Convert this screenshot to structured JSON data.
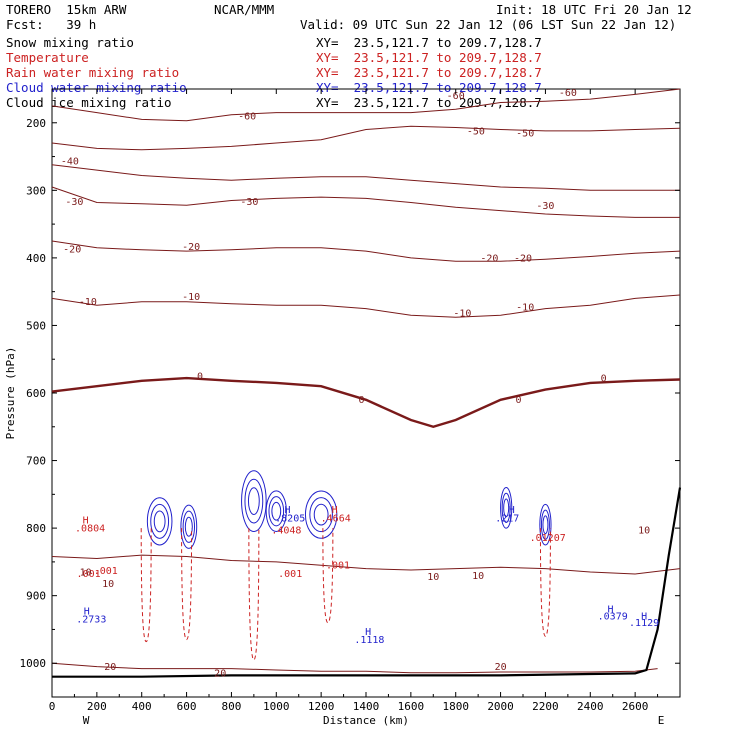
{
  "header": {
    "model": "TORERO  15km ARW",
    "center": "NCAR/MMM",
    "init": "Init: 18 UTC Fri 20 Jan 12",
    "fcst": "Fcst:   39 h",
    "valid": "Valid: 09 UTC Sun 22 Jan 12 (06 LST Sun 22 Jan 12)"
  },
  "fields": [
    {
      "name": "Snow mixing ratio",
      "xy": "XY=  23.5,121.7 to 209.7,128.7",
      "color": "#000000"
    },
    {
      "name": "Temperature",
      "xy": "XY=  23.5,121.7 to 209.7,128.7",
      "color": "#cc2222"
    },
    {
      "name": "Rain water mixing ratio",
      "xy": "XY=  23.5,121.7 to 209.7,128.7",
      "color": "#cc2222"
    },
    {
      "name": "Cloud water mixing ratio",
      "xy": "XY=  23.5,121.7 to 209.7,128.7",
      "color": "#2222cc"
    },
    {
      "name": "Cloud ice mixing ratio",
      "xy": "XY=  23.5,121.7 to 209.7,128.7",
      "color": "#000000"
    }
  ],
  "chart_data": {
    "type": "line",
    "title": "",
    "xlabel": "Distance (km)",
    "ylabel": "Pressure (hPa)",
    "xlim": [
      0,
      2800
    ],
    "ylim": [
      1050,
      150
    ],
    "x_ticks": [
      0,
      200,
      400,
      600,
      800,
      1000,
      1200,
      1400,
      1600,
      1800,
      2000,
      2200,
      2400,
      2600
    ],
    "y_ticks": [
      200,
      300,
      400,
      500,
      600,
      700,
      800,
      900,
      1000
    ],
    "x_end_labels": {
      "left": "W",
      "right": "E"
    },
    "colors": {
      "temperature": "#7a1a1a",
      "rain": "#cc2222",
      "cloud": "#2222cc",
      "terrain": "#000000"
    },
    "isotherms": [
      {
        "label": "-60",
        "points": [
          [
            0,
            175
          ],
          [
            200,
            185
          ],
          [
            400,
            195
          ],
          [
            600,
            197
          ],
          [
            800,
            188
          ],
          [
            1000,
            185
          ],
          [
            1200,
            185
          ],
          [
            1400,
            185
          ],
          [
            1600,
            185
          ],
          [
            1800,
            180
          ],
          [
            2000,
            170
          ],
          [
            2200,
            168
          ],
          [
            2400,
            165
          ],
          [
            2600,
            158
          ],
          [
            2800,
            150
          ]
        ]
      },
      {
        "label": "-50",
        "points": [
          [
            0,
            230
          ],
          [
            200,
            238
          ],
          [
            400,
            240
          ],
          [
            600,
            238
          ],
          [
            800,
            235
          ],
          [
            1000,
            230
          ],
          [
            1200,
            225
          ],
          [
            1400,
            210
          ],
          [
            1600,
            205
          ],
          [
            1800,
            207
          ],
          [
            2000,
            210
          ],
          [
            2200,
            212
          ],
          [
            2400,
            212
          ],
          [
            2600,
            210
          ],
          [
            2800,
            208
          ]
        ]
      },
      {
        "label": "-40",
        "points": [
          [
            0,
            262
          ],
          [
            200,
            270
          ],
          [
            400,
            278
          ],
          [
            600,
            282
          ],
          [
            800,
            285
          ],
          [
            1000,
            282
          ],
          [
            1200,
            280
          ],
          [
            1400,
            280
          ],
          [
            1600,
            285
          ],
          [
            1800,
            290
          ],
          [
            2000,
            295
          ],
          [
            2200,
            297
          ],
          [
            2400,
            300
          ],
          [
            2600,
            300
          ],
          [
            2800,
            300
          ]
        ]
      },
      {
        "label": "-30",
        "points": [
          [
            0,
            295
          ],
          [
            200,
            318
          ],
          [
            400,
            320
          ],
          [
            600,
            322
          ],
          [
            800,
            315
          ],
          [
            1000,
            312
          ],
          [
            1200,
            310
          ],
          [
            1400,
            312
          ],
          [
            1600,
            318
          ],
          [
            1800,
            325
          ],
          [
            2000,
            330
          ],
          [
            2200,
            335
          ],
          [
            2400,
            338
          ],
          [
            2600,
            340
          ],
          [
            2800,
            340
          ]
        ]
      },
      {
        "label": "-20",
        "points": [
          [
            0,
            375
          ],
          [
            200,
            385
          ],
          [
            400,
            388
          ],
          [
            600,
            390
          ],
          [
            800,
            388
          ],
          [
            1000,
            385
          ],
          [
            1200,
            385
          ],
          [
            1400,
            390
          ],
          [
            1600,
            400
          ],
          [
            1800,
            405
          ],
          [
            2000,
            405
          ],
          [
            2200,
            402
          ],
          [
            2400,
            398
          ],
          [
            2600,
            393
          ],
          [
            2800,
            390
          ]
        ]
      },
      {
        "label": "-10",
        "points": [
          [
            0,
            460
          ],
          [
            200,
            470
          ],
          [
            400,
            465
          ],
          [
            600,
            465
          ],
          [
            800,
            468
          ],
          [
            1000,
            470
          ],
          [
            1200,
            470
          ],
          [
            1400,
            475
          ],
          [
            1600,
            485
          ],
          [
            1800,
            488
          ],
          [
            2000,
            485
          ],
          [
            2200,
            475
          ],
          [
            2400,
            470
          ],
          [
            2600,
            460
          ],
          [
            2800,
            455
          ]
        ]
      },
      {
        "label": "0",
        "points": [
          [
            0,
            598
          ],
          [
            200,
            590
          ],
          [
            400,
            582
          ],
          [
            600,
            578
          ],
          [
            800,
            582
          ],
          [
            1000,
            585
          ],
          [
            1200,
            590
          ],
          [
            1400,
            610
          ],
          [
            1600,
            640
          ],
          [
            1700,
            650
          ],
          [
            1800,
            640
          ],
          [
            2000,
            610
          ],
          [
            2200,
            595
          ],
          [
            2400,
            585
          ],
          [
            2600,
            582
          ],
          [
            2800,
            580
          ]
        ]
      },
      {
        "label": "10",
        "points": [
          [
            0,
            842
          ],
          [
            200,
            845
          ],
          [
            400,
            840
          ],
          [
            600,
            842
          ],
          [
            800,
            848
          ],
          [
            1000,
            850
          ],
          [
            1200,
            855
          ],
          [
            1400,
            860
          ],
          [
            1600,
            862
          ],
          [
            1800,
            860
          ],
          [
            2000,
            858
          ],
          [
            2200,
            860
          ],
          [
            2400,
            865
          ],
          [
            2600,
            868
          ],
          [
            2800,
            860
          ]
        ]
      },
      {
        "label": "20",
        "points": [
          [
            0,
            1000
          ],
          [
            200,
            1005
          ],
          [
            400,
            1008
          ],
          [
            600,
            1008
          ],
          [
            800,
            1008
          ],
          [
            1000,
            1010
          ],
          [
            1200,
            1012
          ],
          [
            1400,
            1012
          ],
          [
            1600,
            1014
          ],
          [
            1800,
            1014
          ],
          [
            2000,
            1013
          ],
          [
            2200,
            1013
          ],
          [
            2400,
            1013
          ],
          [
            2600,
            1012
          ],
          [
            2700,
            1008
          ]
        ]
      }
    ],
    "terrain": [
      [
        0,
        1020
      ],
      [
        400,
        1020
      ],
      [
        800,
        1018
      ],
      [
        1200,
        1018
      ],
      [
        1600,
        1018
      ],
      [
        2000,
        1018
      ],
      [
        2400,
        1016
      ],
      [
        2600,
        1015
      ],
      [
        2650,
        1010
      ],
      [
        2700,
        950
      ],
      [
        2750,
        840
      ],
      [
        2800,
        740
      ]
    ],
    "rain_columns": [
      [
        420,
        800,
        968
      ],
      [
        600,
        800,
        965
      ],
      [
        900,
        800,
        995
      ],
      [
        1230,
        800,
        940
      ],
      [
        2200,
        800,
        960
      ]
    ],
    "cloud_blobs": [
      [
        480,
        790,
        55,
        35
      ],
      [
        610,
        798,
        35,
        32
      ],
      [
        900,
        760,
        55,
        45
      ],
      [
        1000,
        775,
        45,
        30
      ],
      [
        1200,
        780,
        70,
        35
      ],
      [
        2025,
        770,
        25,
        30
      ],
      [
        2200,
        795,
        25,
        30
      ]
    ],
    "annotations": [
      {
        "text": "H",
        "x": 150,
        "y": 793,
        "color": "red"
      },
      {
        "text": ".0804",
        "x": 170,
        "y": 805,
        "color": "red"
      },
      {
        "text": ".001",
        "x": 163,
        "y": 872,
        "color": "red"
      },
      {
        "text": ".001",
        "x": 240,
        "y": 868,
        "color": "red"
      },
      {
        "text": "H",
        "x": 1050,
        "y": 778,
        "color": "blue"
      },
      {
        "text": ".8205",
        "x": 1062,
        "y": 790,
        "color": "blue"
      },
      {
        "text": ".4048",
        "x": 1045,
        "y": 808,
        "color": "red"
      },
      {
        "text": ".001",
        "x": 1062,
        "y": 872,
        "color": "red"
      },
      {
        "text": "H",
        "x": 1260,
        "y": 778,
        "color": "red"
      },
      {
        "text": ".4664",
        "x": 1265,
        "y": 790,
        "color": "red"
      },
      {
        "text": ".001",
        "x": 1275,
        "y": 860,
        "color": "red"
      },
      {
        "text": "H",
        "x": 2050,
        "y": 778,
        "color": "blue"
      },
      {
        "text": ".217",
        "x": 2030,
        "y": 790,
        "color": "blue"
      },
      {
        "text": ".01207",
        "x": 2210,
        "y": 819,
        "color": "red"
      },
      {
        "text": "H",
        "x": 155,
        "y": 928,
        "color": "blue"
      },
      {
        "text": ".2733",
        "x": 175,
        "y": 940,
        "color": "blue"
      },
      {
        "text": "H",
        "x": 1410,
        "y": 958,
        "color": "blue"
      },
      {
        "text": ".1118",
        "x": 1415,
        "y": 970,
        "color": "blue"
      },
      {
        "text": "H",
        "x": 2490,
        "y": 925,
        "color": "blue"
      },
      {
        "text": ".0379",
        "x": 2500,
        "y": 935,
        "color": "blue"
      },
      {
        "text": "H",
        "x": 2640,
        "y": 935,
        "color": "blue"
      },
      {
        "text": ".1129",
        "x": 2640,
        "y": 945,
        "color": "blue"
      },
      {
        "text": "10",
        "x": 2640,
        "y": 808,
        "color": "maroon"
      },
      {
        "text": "10",
        "x": 150,
        "y": 870,
        "color": "maroon"
      },
      {
        "text": "10",
        "x": 250,
        "y": 887,
        "color": "maroon"
      },
      {
        "text": "10",
        "x": 1700,
        "y": 877,
        "color": "maroon"
      },
      {
        "text": "10",
        "x": 1900,
        "y": 875,
        "color": "maroon"
      },
      {
        "text": "20",
        "x": 260,
        "y": 1010,
        "color": "maroon"
      },
      {
        "text": "20",
        "x": 750,
        "y": 1020,
        "color": "maroon"
      },
      {
        "text": "20",
        "x": 2000,
        "y": 1010,
        "color": "maroon"
      },
      {
        "text": "-60",
        "x": 870,
        "y": 195,
        "color": "maroon"
      },
      {
        "text": "-60",
        "x": 1800,
        "y": 165,
        "color": "maroon"
      },
      {
        "text": "-60",
        "x": 2300,
        "y": 160,
        "color": "maroon"
      },
      {
        "text": "-50",
        "x": 1890,
        "y": 217,
        "color": "maroon"
      },
      {
        "text": "-50",
        "x": 2110,
        "y": 220,
        "color": "maroon"
      },
      {
        "text": "-40",
        "x": 80,
        "y": 262,
        "color": "maroon"
      },
      {
        "text": "-30",
        "x": 100,
        "y": 322,
        "color": "maroon"
      },
      {
        "text": "-30",
        "x": 880,
        "y": 322,
        "color": "maroon"
      },
      {
        "text": "-30",
        "x": 2200,
        "y": 328,
        "color": "maroon"
      },
      {
        "text": "-20",
        "x": 90,
        "y": 392,
        "color": "maroon"
      },
      {
        "text": "-20",
        "x": 620,
        "y": 388,
        "color": "maroon"
      },
      {
        "text": "-20",
        "x": 1950,
        "y": 405,
        "color": "maroon"
      },
      {
        "text": "-20",
        "x": 2100,
        "y": 405,
        "color": "maroon"
      },
      {
        "text": "-10",
        "x": 160,
        "y": 470,
        "color": "maroon"
      },
      {
        "text": "-10",
        "x": 620,
        "y": 462,
        "color": "maroon"
      },
      {
        "text": "-10",
        "x": 1830,
        "y": 487,
        "color": "maroon"
      },
      {
        "text": "-10",
        "x": 2110,
        "y": 478,
        "color": "maroon"
      },
      {
        "text": "0",
        "x": 660,
        "y": 580,
        "color": "maroon"
      },
      {
        "text": "0",
        "x": 1380,
        "y": 615,
        "color": "maroon"
      },
      {
        "text": "0",
        "x": 2080,
        "y": 615,
        "color": "maroon"
      },
      {
        "text": "0",
        "x": 2460,
        "y": 583,
        "color": "maroon"
      }
    ]
  }
}
